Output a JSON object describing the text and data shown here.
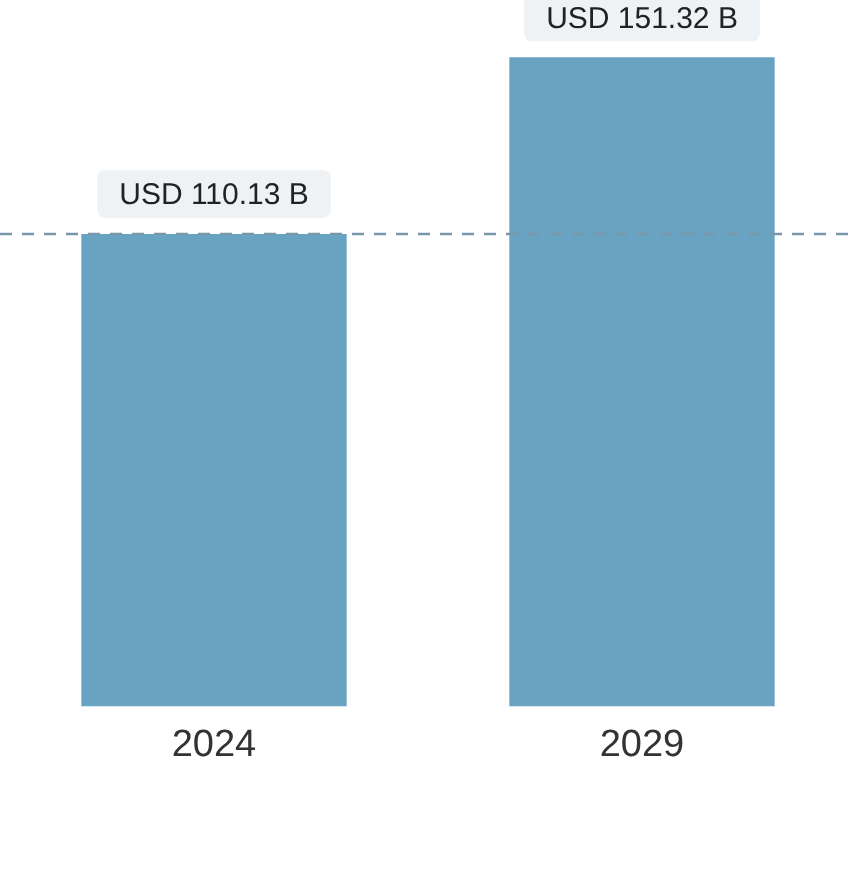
{
  "chart_data": {
    "type": "bar",
    "categories": [
      "2024",
      "2029"
    ],
    "values": [
      110.13,
      151.32
    ],
    "color": "#68a4c2",
    "value_labels": [
      "USD 110.13 B",
      "USD 151.32 B"
    ],
    "ref_lines": [
      {
        "axis": "y",
        "value": 110.13,
        "color": "#7a98ad",
        "line_style": "dashed"
      }
    ],
    "grid": false,
    "legend": false
  }
}
